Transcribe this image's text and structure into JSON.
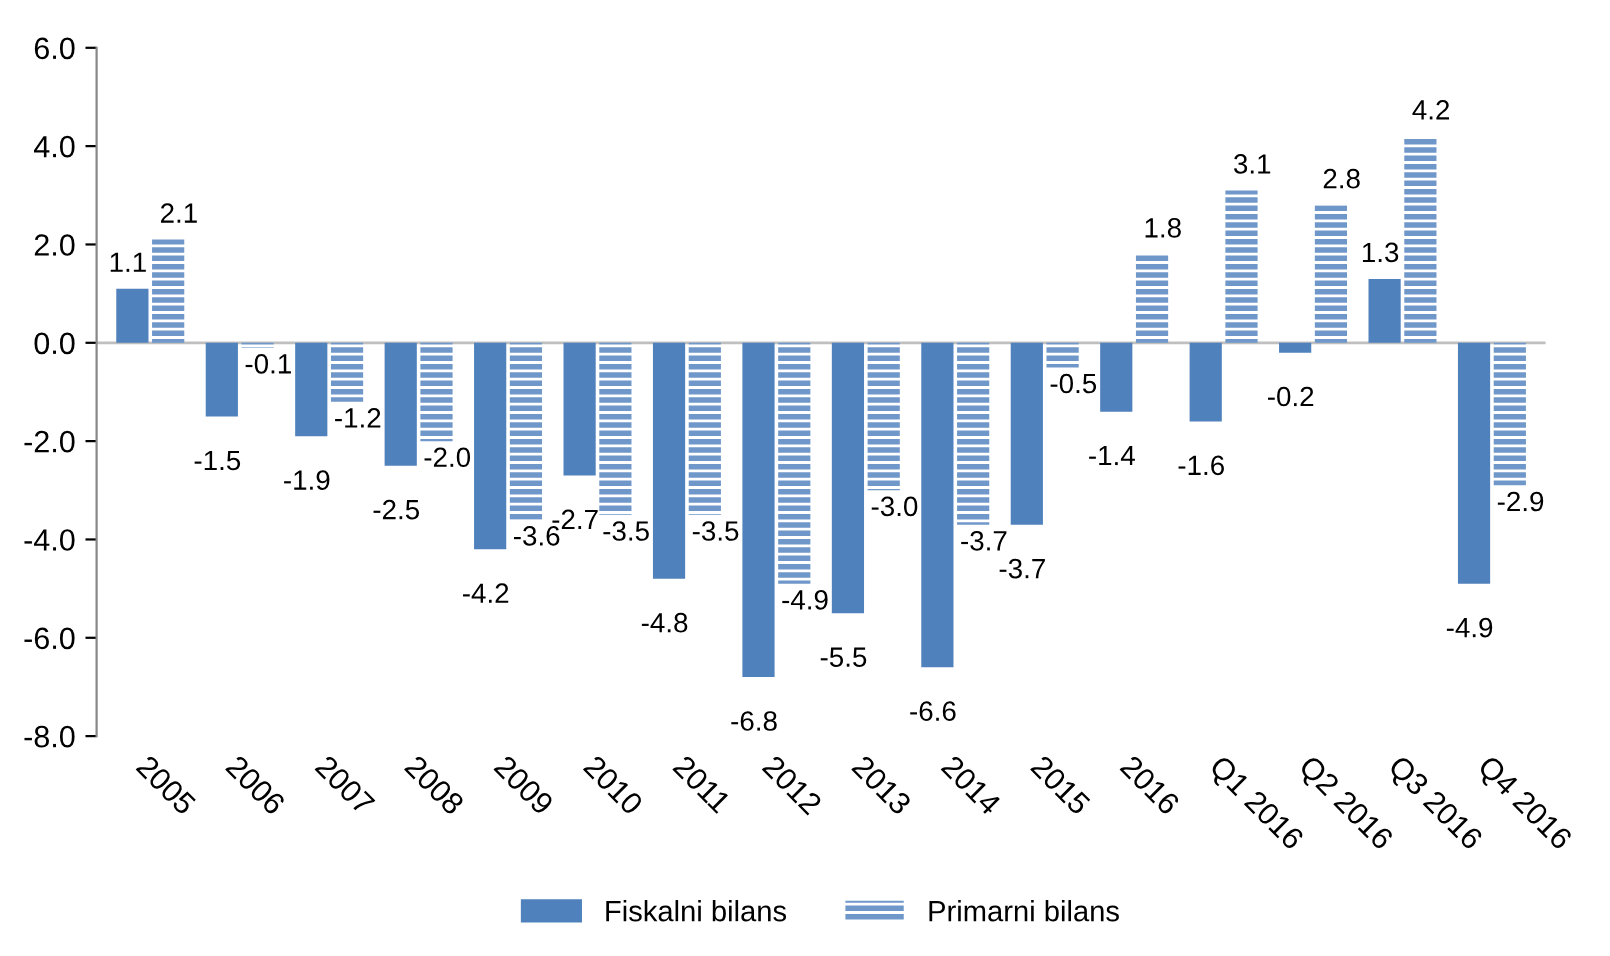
{
  "chart_data": {
    "type": "bar",
    "categories": [
      "2005",
      "2006",
      "2007",
      "2008",
      "2009",
      "2010",
      "2011",
      "2012",
      "2013",
      "2014",
      "2015",
      "2016",
      "Q1 2016",
      "Q2 2016",
      "Q3 2016",
      "Q4 2016"
    ],
    "series": [
      {
        "name": "Fiskalni bilans",
        "color": "#4f81bd",
        "values": [
          1.1,
          -1.5,
          -1.9,
          -2.5,
          -4.2,
          -2.7,
          -4.8,
          -6.8,
          -5.5,
          -6.6,
          -3.7,
          -1.4,
          -1.6,
          -0.2,
          1.3,
          -4.9
        ],
        "value_labels": [
          "1.1",
          "-1.5",
          "-1.9",
          "-2.5",
          "-4.2",
          "-2.7",
          "-4.8",
          "-6.8",
          "-5.5",
          "-6.6",
          "-3.7",
          "-1.4",
          "-1.6",
          "-0.2",
          "1.3",
          "-4.9"
        ]
      },
      {
        "name": "Primarni bilans",
        "color": "#6f97c9",
        "values": [
          2.1,
          -0.1,
          -1.2,
          -2.0,
          -3.6,
          -3.5,
          -3.5,
          -4.9,
          -3.0,
          -3.7,
          -0.5,
          1.8,
          3.1,
          2.8,
          4.2,
          -2.9
        ],
        "value_labels": [
          "2.1",
          "-0.1",
          "-1.2",
          "-2.0",
          "-3.6",
          "-3.5",
          "-3.5",
          "-4.9",
          "-3.0",
          "-3.7",
          "-0.5",
          "1.8",
          "3.1",
          "2.8",
          "4.2",
          "-2.9"
        ]
      }
    ],
    "ylim": [
      -8.0,
      6.0
    ],
    "yticks": [
      {
        "value": -8,
        "label": "-8.0"
      },
      {
        "value": -6,
        "label": "-6.0"
      },
      {
        "value": -4,
        "label": "-4.0"
      },
      {
        "value": -2,
        "label": "-2.0"
      },
      {
        "value": 0,
        "label": "0.0"
      },
      {
        "value": 2,
        "label": "2.0"
      },
      {
        "value": 4,
        "label": "4.0"
      },
      {
        "value": 6,
        "label": "6.0"
      }
    ],
    "ref_lines": [
      {
        "axis": "y",
        "value": 0,
        "color": "#bfbfbf"
      }
    ],
    "legend": "bottom",
    "grid": false
  }
}
